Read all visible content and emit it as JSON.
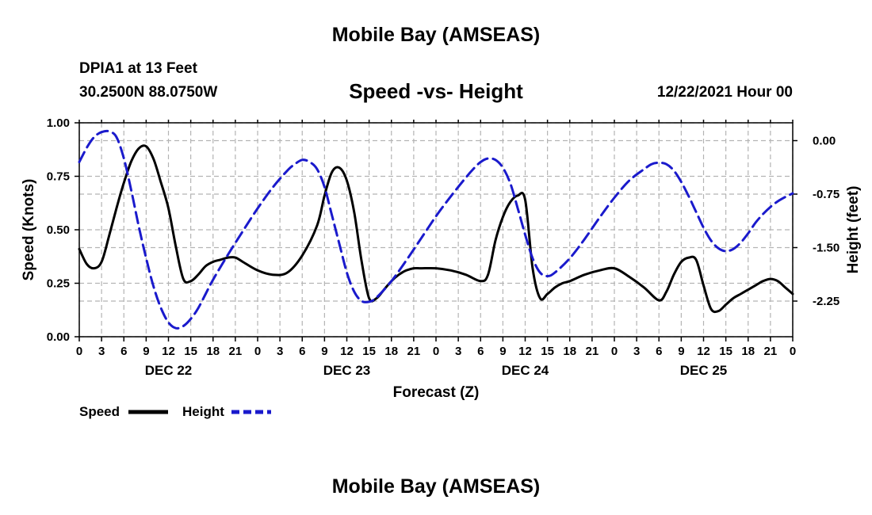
{
  "page": {
    "title": "Mobile Bay (AMSEAS)",
    "station": "DPIA1 at 13 Feet",
    "coords": "30.2500N  88.0750W",
    "subtitle": "Speed -vs- Height",
    "datetime": "12/22/2021 Hour 00",
    "bottom_title": "Mobile Bay (AMSEAS)"
  },
  "chart_data": {
    "type": "line",
    "title": "Speed -vs- Height",
    "xlabel": "Forecast (Z)",
    "ylabel": "Speed (Knots)",
    "y2label": "Height (feet)",
    "x_unit": "hours since 12/22/2021 00Z",
    "xlim": [
      0,
      96
    ],
    "ylim": [
      0,
      1
    ],
    "y2lim": [
      -2.75,
      0.25
    ],
    "x_ticks": [
      0,
      3,
      6,
      9,
      12,
      15,
      18,
      21,
      24,
      27,
      30,
      33,
      36,
      39,
      42,
      45,
      48,
      51,
      54,
      57,
      60,
      63,
      66,
      69,
      72,
      75,
      78,
      81,
      84,
      87,
      90,
      93,
      96
    ],
    "x_tick_labels": [
      "0",
      "3",
      "6",
      "9",
      "12",
      "15",
      "18",
      "21",
      "0",
      "3",
      "6",
      "9",
      "12",
      "15",
      "18",
      "21",
      "0",
      "3",
      "6",
      "9",
      "12",
      "15",
      "18",
      "21",
      "0",
      "3",
      "6",
      "9",
      "12",
      "15",
      "18",
      "21",
      "0"
    ],
    "day_labels": [
      {
        "x": 12,
        "label": "DEC 22"
      },
      {
        "x": 36,
        "label": "DEC 23"
      },
      {
        "x": 60,
        "label": "DEC 24"
      },
      {
        "x": 84,
        "label": "DEC 25"
      }
    ],
    "y_ticks": [
      0,
      0.25,
      0.5,
      0.75,
      1.0
    ],
    "y_tick_labels": [
      "0.00",
      "0.25",
      "0.50",
      "0.75",
      "1.00"
    ],
    "y2_ticks": [
      0,
      -0.75,
      -1.5,
      -2.25
    ],
    "y2_tick_labels": [
      "0.00",
      "-0.75",
      "-1.50",
      "-2.25"
    ],
    "grid": true,
    "legend": [
      {
        "name": "Speed",
        "color": "#000000",
        "style": "solid"
      },
      {
        "name": "Height",
        "color": "#1a1acc",
        "style": "dashed"
      }
    ],
    "series": [
      {
        "name": "Speed",
        "axis": "left",
        "color": "#000000",
        "style": "solid",
        "x": [
          0,
          1,
          2,
          3,
          4,
          5,
          6,
          7,
          8,
          9,
          10,
          11,
          12,
          13,
          14,
          15,
          16,
          17,
          18,
          19,
          20,
          21,
          22,
          24,
          26,
          28,
          30,
          32,
          33,
          34,
          35,
          36,
          37,
          38,
          39,
          40,
          41,
          42,
          43,
          44,
          45,
          46,
          48,
          50,
          52,
          54,
          55,
          56,
          57,
          58,
          59,
          60,
          61,
          62,
          63,
          64,
          65,
          66,
          68,
          70,
          72,
          74,
          76,
          78,
          79,
          80,
          81,
          82,
          83,
          84,
          85,
          86,
          87,
          88,
          89,
          90,
          91,
          92,
          93,
          94,
          95,
          96
        ],
        "values": [
          0.41,
          0.34,
          0.32,
          0.35,
          0.47,
          0.6,
          0.72,
          0.82,
          0.88,
          0.89,
          0.83,
          0.72,
          0.6,
          0.42,
          0.27,
          0.26,
          0.29,
          0.33,
          0.35,
          0.36,
          0.37,
          0.37,
          0.35,
          0.31,
          0.29,
          0.3,
          0.38,
          0.52,
          0.66,
          0.77,
          0.79,
          0.73,
          0.58,
          0.35,
          0.18,
          0.18,
          0.22,
          0.26,
          0.29,
          0.31,
          0.32,
          0.32,
          0.32,
          0.31,
          0.29,
          0.26,
          0.29,
          0.45,
          0.56,
          0.63,
          0.66,
          0.64,
          0.32,
          0.18,
          0.2,
          0.23,
          0.25,
          0.26,
          0.29,
          0.31,
          0.32,
          0.28,
          0.23,
          0.17,
          0.21,
          0.29,
          0.35,
          0.37,
          0.36,
          0.24,
          0.13,
          0.12,
          0.15,
          0.18,
          0.2,
          0.22,
          0.24,
          0.26,
          0.27,
          0.26,
          0.23,
          0.2
        ]
      },
      {
        "name": "Height",
        "axis": "right",
        "color": "#1a1acc",
        "style": "dashed",
        "x": [
          0,
          1,
          2,
          3,
          4,
          5,
          6,
          7,
          8,
          9,
          10,
          11,
          12,
          13,
          14,
          15,
          16,
          17,
          18,
          20,
          22,
          24,
          26,
          28,
          29,
          30,
          31,
          32,
          33,
          34,
          35,
          36,
          37,
          38,
          39,
          40,
          42,
          44,
          46,
          48,
          50,
          52,
          53,
          54,
          55,
          56,
          57,
          58,
          59,
          60,
          61,
          62,
          63,
          64,
          66,
          68,
          70,
          72,
          74,
          76,
          77,
          78,
          79,
          80,
          81,
          82,
          83,
          84,
          85,
          86,
          87,
          88,
          89,
          90,
          91,
          92,
          93,
          94,
          95,
          96
        ],
        "values": [
          -0.3,
          -0.1,
          0.05,
          0.12,
          0.13,
          0.05,
          -0.25,
          -0.7,
          -1.2,
          -1.65,
          -2.05,
          -2.35,
          -2.55,
          -2.63,
          -2.6,
          -2.5,
          -2.35,
          -2.15,
          -1.95,
          -1.6,
          -1.27,
          -0.95,
          -0.66,
          -0.42,
          -0.33,
          -0.27,
          -0.3,
          -0.4,
          -0.65,
          -1.05,
          -1.45,
          -1.85,
          -2.12,
          -2.25,
          -2.26,
          -2.2,
          -1.97,
          -1.68,
          -1.37,
          -1.06,
          -0.78,
          -0.52,
          -0.4,
          -0.3,
          -0.25,
          -0.27,
          -0.38,
          -0.6,
          -0.95,
          -1.32,
          -1.65,
          -1.85,
          -1.9,
          -1.85,
          -1.65,
          -1.38,
          -1.08,
          -0.8,
          -0.56,
          -0.4,
          -0.33,
          -0.31,
          -0.33,
          -0.42,
          -0.58,
          -0.78,
          -1.0,
          -1.22,
          -1.4,
          -1.51,
          -1.55,
          -1.52,
          -1.43,
          -1.3,
          -1.15,
          -1.03,
          -0.93,
          -0.85,
          -0.79,
          -0.74
        ]
      }
    ]
  }
}
